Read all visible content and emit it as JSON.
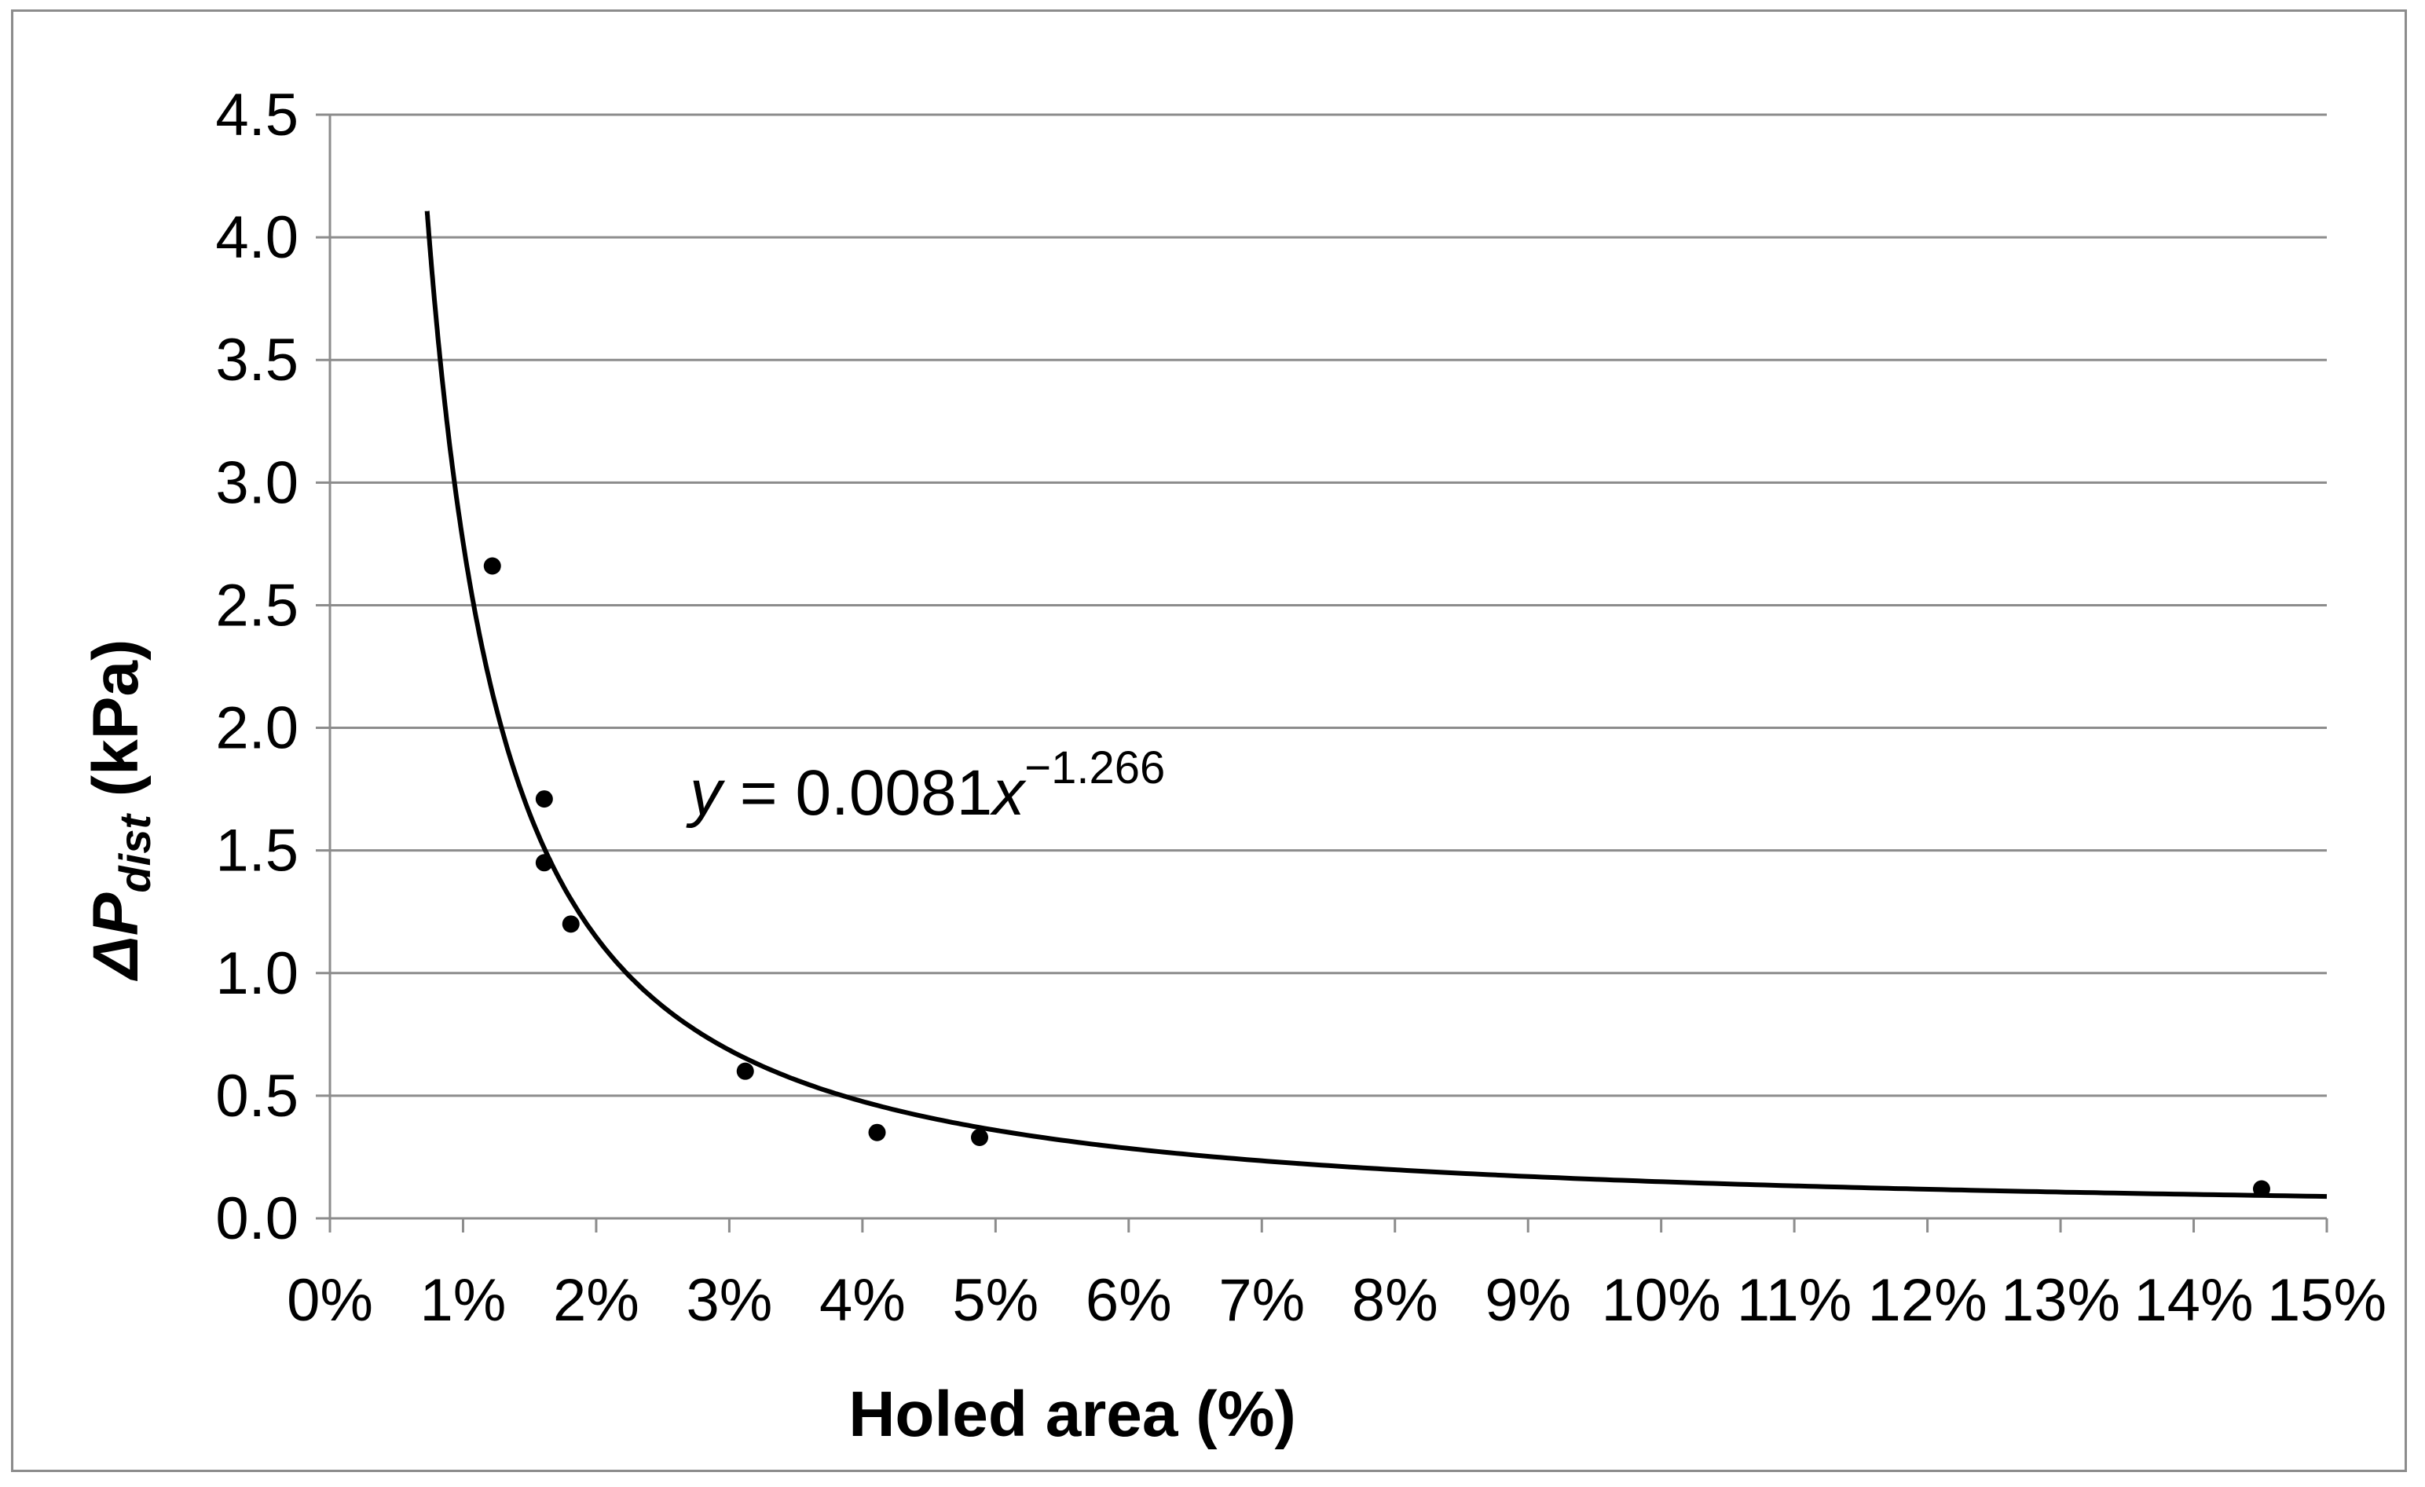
{
  "chart_data": {
    "type": "scatter",
    "xlabel": "Holed area (%)",
    "ylabel": {
      "prefix": "ΔP",
      "subscript": "dist",
      "suffix": " (kPa)"
    },
    "xlim": [
      0,
      15
    ],
    "ylim": [
      0,
      4.5
    ],
    "x_ticks": [
      "0%",
      "1%",
      "2%",
      "3%",
      "4%",
      "5%",
      "6%",
      "7%",
      "8%",
      "9%",
      "10%",
      "11%",
      "12%",
      "13%",
      "14%",
      "15%"
    ],
    "y_ticks": [
      "0.0",
      "0.5",
      "1.0",
      "1.5",
      "2.0",
      "2.5",
      "3.0",
      "3.5",
      "4.0",
      "4.5"
    ],
    "grid": "horizontal",
    "points": [
      {
        "x": 1.22,
        "y": 2.66
      },
      {
        "x": 1.61,
        "y": 1.71
      },
      {
        "x": 1.61,
        "y": 1.45
      },
      {
        "x": 1.81,
        "y": 1.2
      },
      {
        "x": 3.12,
        "y": 0.6
      },
      {
        "x": 4.11,
        "y": 0.35
      },
      {
        "x": 4.88,
        "y": 0.33
      },
      {
        "x": 14.51,
        "y": 0.12
      }
    ],
    "trendline": {
      "type": "power",
      "coefficient": 0.0081,
      "exponent": -1.266,
      "x_range": [
        0.73,
        15
      ],
      "equation": {
        "lhs": "y",
        "middle": " = 0.0081",
        "var": "x",
        "exponent": "−1.266"
      }
    },
    "colors": {
      "marker": "#000000",
      "line": "#000000",
      "grid": "#8c8c8c"
    }
  }
}
